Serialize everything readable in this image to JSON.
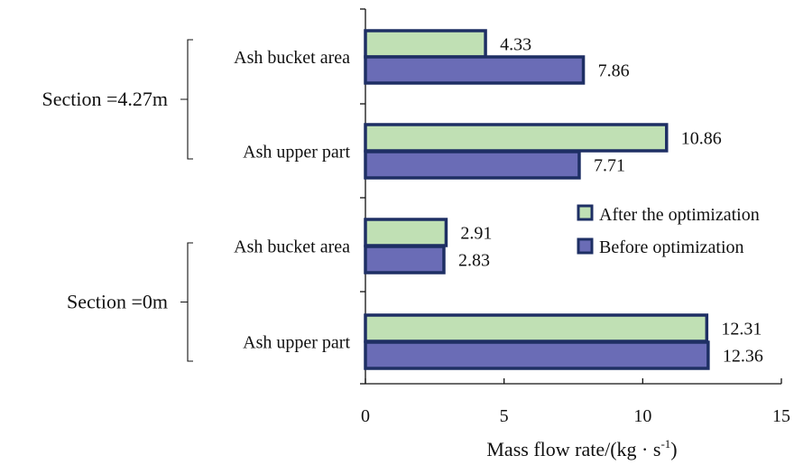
{
  "chart_data": {
    "type": "bar",
    "orientation": "horizontal",
    "groups": [
      {
        "label": "Section =4.27m",
        "categories": [
          "Ash bucket area",
          "Ash upper part"
        ]
      },
      {
        "label": "Section =0m",
        "categories": [
          "Ash bucket area",
          "Ash upper part"
        ]
      }
    ],
    "categories": [
      "Section =4.27m / Ash bucket area",
      "Section =4.27m / Ash upper part",
      "Section =0m / Ash bucket area",
      "Section =0m / Ash upper part"
    ],
    "series": [
      {
        "name": "After the optimization",
        "color": "#c0e0b4",
        "values": [
          4.33,
          10.86,
          2.91,
          12.31
        ]
      },
      {
        "name": "Before optimization",
        "color": "#6a6cb6",
        "values": [
          7.86,
          7.71,
          2.83,
          12.36
        ]
      }
    ],
    "bar_border_color": "#1e2f64",
    "value_labels": {
      "After the optimization": [
        "4.33",
        "10.86",
        "2.91",
        "12.31"
      ],
      "Before optimization": [
        "7.86",
        "7.71",
        "2.83",
        "12.36"
      ]
    },
    "xaxis": {
      "title_main": "Mass flow rate/(kg · s",
      "title_sup": "-1",
      "title_end": ")",
      "ticks": [
        0,
        5,
        10,
        15
      ],
      "tick_labels": [
        "0",
        "5",
        "10",
        "15"
      ],
      "xlim": [
        0,
        15
      ]
    },
    "legend": {
      "position": "right"
    },
    "grid": false
  }
}
